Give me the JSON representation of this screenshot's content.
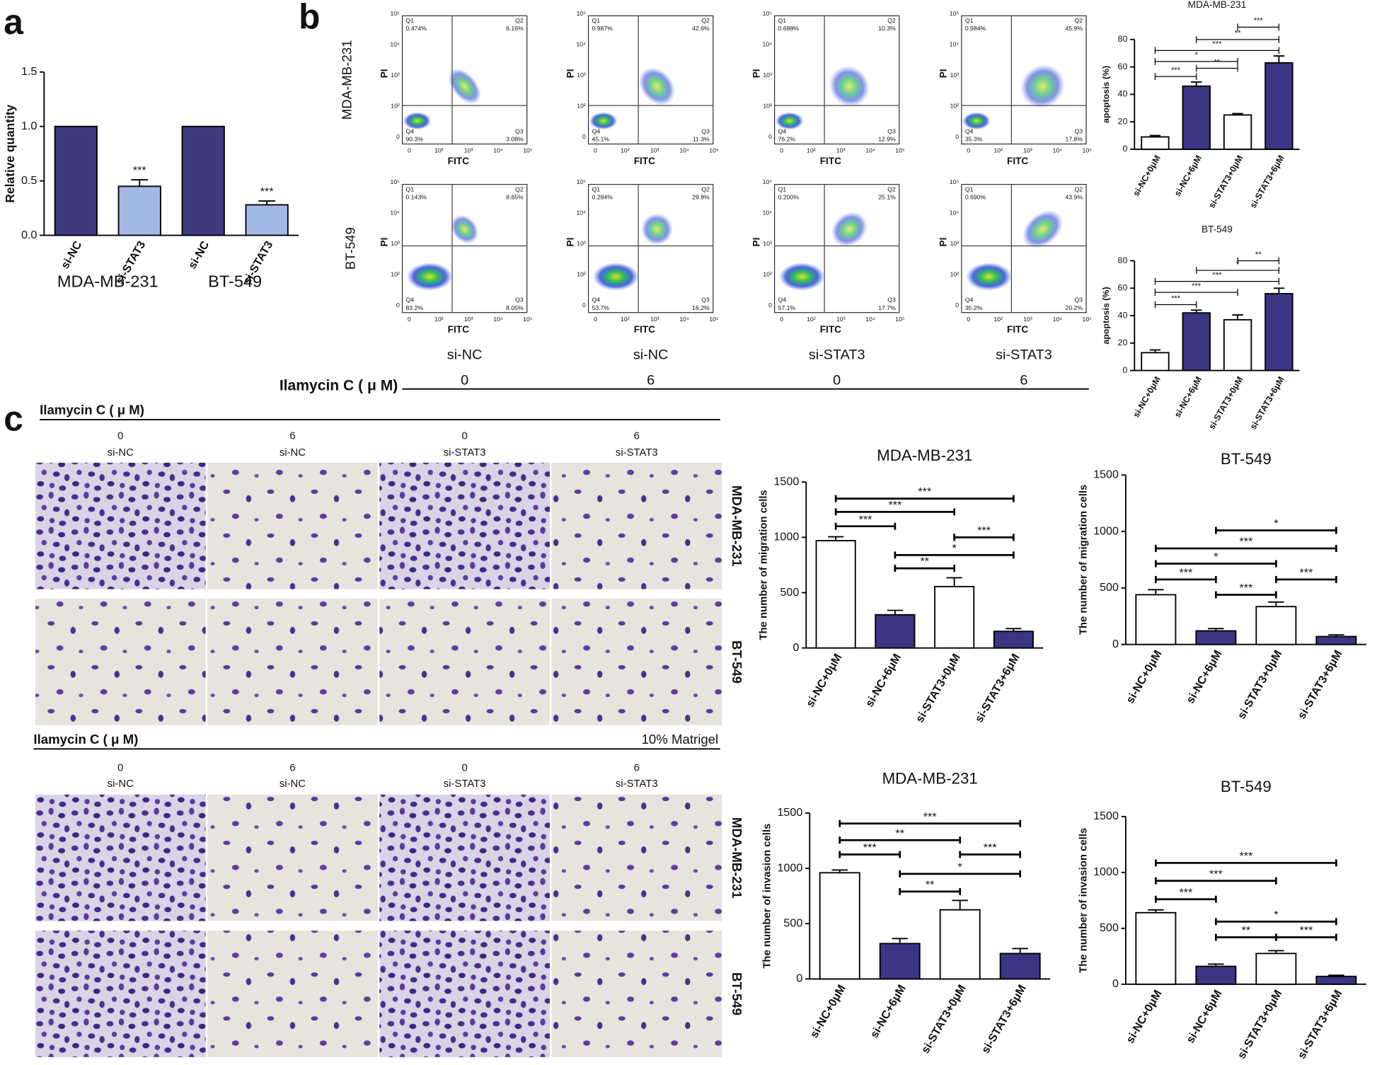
{
  "panel_labels": [
    "a",
    "b",
    "c"
  ],
  "chart_data": [
    {
      "type": "bar",
      "ylabel": "Relative quantity",
      "categories": [
        "si-NC",
        "si-STAT3",
        "si-NC",
        "si-STAT3"
      ],
      "values": [
        1,
        0.45,
        1,
        0.28
      ],
      "errors": [
        0,
        0.06,
        0,
        0.035
      ],
      "colors": [
        "#3f3a7d",
        "#a3b9e3",
        "#3f3a7d",
        "#a3b9e3"
      ],
      "ylim": [
        0,
        1.5
      ],
      "yticks": [
        {
          "value": 0,
          "label": "0.0"
        },
        0.5,
        {
          "value": 1,
          "label": "1.0"
        },
        1.5
      ],
      "annotations": [
        "***",
        "***"
      ],
      "groups": [
        "MDA-MB-231",
        "BT-549"
      ]
    },
    {
      "type": "bar",
      "title": "MDA-MB-231",
      "ylabel": "apoptosis (%)",
      "categories": [
        "si-NC+0μM",
        "si-NC+6μM",
        "si-STAT3+0μM",
        "si-STAT3+6μM"
      ],
      "values": [
        9,
        46,
        25,
        63
      ],
      "errors": [
        1,
        3,
        1,
        5
      ],
      "colors": [
        "#ffffff",
        "#3b3585",
        "#ffffff",
        "#3b3585"
      ],
      "ylim": [
        0,
        80
      ],
      "yticks": [
        0,
        20,
        40,
        60,
        80
      ],
      "annotations": [
        "***",
        "**",
        "***",
        "*",
        "**",
        "***"
      ]
    },
    {
      "type": "bar",
      "title": "BT-549",
      "ylabel": "apoptosis (%)",
      "categories": [
        "si-NC+0μM",
        "si-NC+6μM",
        "si-STAT3+0μM",
        "si-STAT3+6μM"
      ],
      "values": [
        13,
        42,
        37,
        56
      ],
      "errors": [
        2,
        2,
        3.5,
        4
      ],
      "colors": [
        "#ffffff",
        "#3b3585",
        "#ffffff",
        "#3b3585"
      ],
      "ylim": [
        0,
        80
      ],
      "yticks": [
        0,
        20,
        40,
        60,
        80
      ],
      "annotations": [
        "**",
        "*",
        "***",
        "***",
        "***"
      ]
    },
    {
      "type": "bar",
      "title": "MDA-MB-231",
      "ylabel": "The number of migration cells",
      "categories": [
        "si-NC+0μM",
        "si-NC+6μM",
        "si-STAT3+0μM",
        "si-STAT3+6μM"
      ],
      "values": [
        970,
        300,
        555,
        150
      ],
      "errors": [
        35,
        40,
        80,
        25
      ],
      "colors": [
        "#ffffff",
        "#3b3585",
        "#ffffff",
        "#3b3585"
      ],
      "ylim": [
        0,
        1500
      ],
      "yticks": [
        0,
        500,
        1000,
        1500
      ],
      "annotations": [
        "***",
        "***",
        "***",
        "***",
        "*",
        "**"
      ]
    },
    {
      "type": "bar",
      "title": "BT-549",
      "ylabel": "The number of migration cells",
      "categories": [
        "si-NC+0μM",
        "si-NC+6μM",
        "si-STAT3+0μM",
        "si-STAT3+6μM"
      ],
      "values": [
        440,
        120,
        335,
        70
      ],
      "errors": [
        45,
        20,
        40,
        15
      ],
      "colors": [
        "#ffffff",
        "#3b3585",
        "#ffffff",
        "#3b3585"
      ],
      "ylim": [
        0,
        1500
      ],
      "yticks": [
        0,
        500,
        1000,
        1500
      ],
      "annotations": [
        "*",
        "***",
        "*",
        "***",
        "***",
        "***"
      ]
    },
    {
      "type": "bar",
      "title": "MDA-MB-231",
      "ylabel": "The number of invasion cells",
      "categories": [
        "si-NC+0μM",
        "si-NC+6μM",
        "si-STAT3+0μM",
        "si-STAT3+6μM"
      ],
      "values": [
        960,
        320,
        625,
        230
      ],
      "errors": [
        25,
        45,
        85,
        45
      ],
      "colors": [
        "#ffffff",
        "#3b3585",
        "#ffffff",
        "#3b3585"
      ],
      "ylim": [
        0,
        1500
      ],
      "yticks": [
        0,
        500,
        1000,
        1500
      ],
      "annotations": [
        "***",
        "**",
        "***",
        "***",
        "*",
        "**"
      ]
    },
    {
      "type": "bar",
      "title": "BT-549",
      "ylabel": "The number of invasion cells",
      "categories": [
        "si-NC+0μM",
        "si-NC+6μM",
        "si-STAT3+0μM",
        "si-STAT3+6μM"
      ],
      "values": [
        640,
        160,
        275,
        70
      ],
      "errors": [
        25,
        20,
        25,
        10
      ],
      "colors": [
        "#ffffff",
        "#3b3585",
        "#ffffff",
        "#3b3585"
      ],
      "ylim": [
        0,
        1500
      ],
      "yticks": [
        0,
        500,
        1000,
        1500
      ],
      "annotations": [
        "***",
        "***",
        "***",
        "*",
        "**",
        "***"
      ]
    }
  ],
  "flow": {
    "cell_lines": [
      "MDA-MB-231",
      "BT-549"
    ],
    "x_label": "FITC",
    "y_label": "PI",
    "quadrants": [
      "Q1",
      "Q2",
      "Q3",
      "Q4"
    ],
    "ticks": [
      "0",
      "10²",
      "10³",
      "10⁴",
      "10⁵"
    ],
    "conditions": [
      "si-NC",
      "si-NC",
      "si-STAT3",
      "si-STAT3"
    ],
    "treatment_label": "Ilamycin C ( μ M)",
    "doses": [
      0,
      6,
      0,
      6
    ],
    "percentages": [
      [
        [
          "0.474%",
          "6.16%",
          "3.08%",
          "90.3%"
        ],
        [
          "0.987%",
          "42.6%",
          "11.3%",
          "45.1%"
        ],
        [
          "0.688%",
          "10.3%",
          "12.9%",
          "76.2%"
        ],
        [
          "0.984%",
          "45.9%",
          "17.8%",
          "35.3%"
        ]
      ],
      [
        [
          "0.143%",
          "8.65%",
          "8.05%",
          "83.2%"
        ],
        [
          "0.284%",
          "29.8%",
          "16.2%",
          "53.7%"
        ],
        [
          "0.200%",
          "25.1%",
          "17.7%",
          "57.1%"
        ],
        [
          "0.690%",
          "43.9%",
          "20.2%",
          "35.2%"
        ]
      ]
    ]
  },
  "transwell": {
    "treatment_label": "Ilamycin C ( μ M)",
    "doses": [
      0,
      6,
      0,
      6
    ],
    "conditions": [
      "si-NC",
      "si-NC",
      "si-STAT3",
      "si-STAT3"
    ],
    "cell_lines": [
      "MDA-MB-231",
      "BT-549"
    ],
    "matrigel": "10% Matrigel"
  }
}
